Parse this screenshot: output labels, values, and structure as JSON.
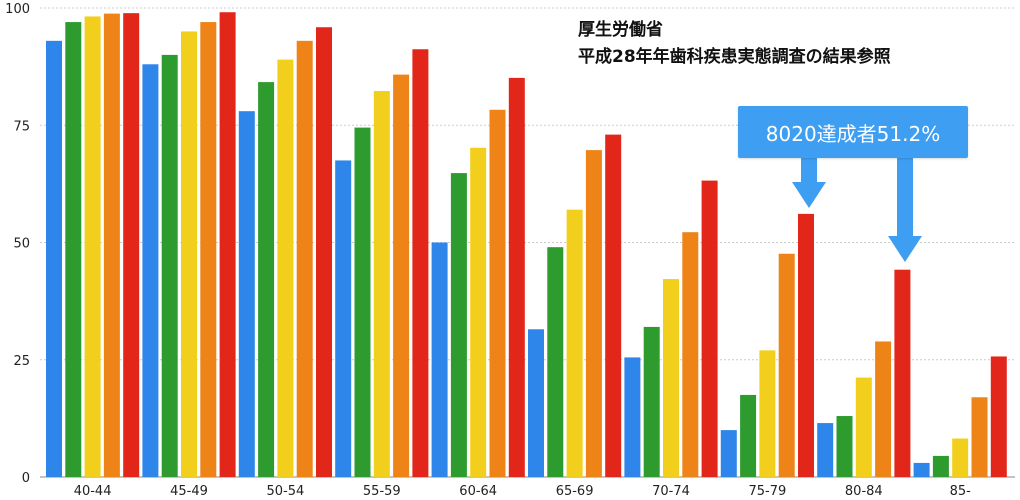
{
  "source": {
    "line1": "厚生労働省",
    "line2": "平成28年年歯科疾患実態調査の結果参照"
  },
  "callout": {
    "label": "8020達成者51.2%"
  },
  "colors": {
    "bars": [
      "#2f86ea",
      "#2e9b2e",
      "#f2cf1c",
      "#ee8418",
      "#e3261a"
    ],
    "callout": "#3d9ef2",
    "grid": "#cccccc"
  },
  "chart_data": {
    "type": "bar",
    "categories": [
      "40-44",
      "45-49",
      "50-54",
      "55-59",
      "60-64",
      "65-69",
      "70-74",
      "75-79",
      "80-84",
      "85-"
    ],
    "series": [
      {
        "values": [
          93,
          88,
          78,
          67.5,
          50,
          31.5,
          25.5,
          10,
          11.5,
          3
        ]
      },
      {
        "values": [
          97,
          90,
          84.2,
          74.5,
          64.8,
          49,
          32,
          17.5,
          13,
          4.5
        ]
      },
      {
        "values": [
          98.2,
          95,
          89,
          82.3,
          70.2,
          57,
          42.2,
          27,
          21.2,
          8.2
        ]
      },
      {
        "values": [
          98.8,
          97,
          93,
          85.8,
          78.3,
          69.7,
          52.2,
          47.6,
          28.9,
          17
        ]
      },
      {
        "values": [
          98.9,
          99.1,
          95.9,
          91.2,
          85.1,
          73,
          63.2,
          56.1,
          44.2,
          25.7
        ]
      }
    ],
    "yticks": [
      0,
      25,
      50,
      75,
      100
    ],
    "ylim": [
      0,
      100
    ],
    "grid": true
  }
}
